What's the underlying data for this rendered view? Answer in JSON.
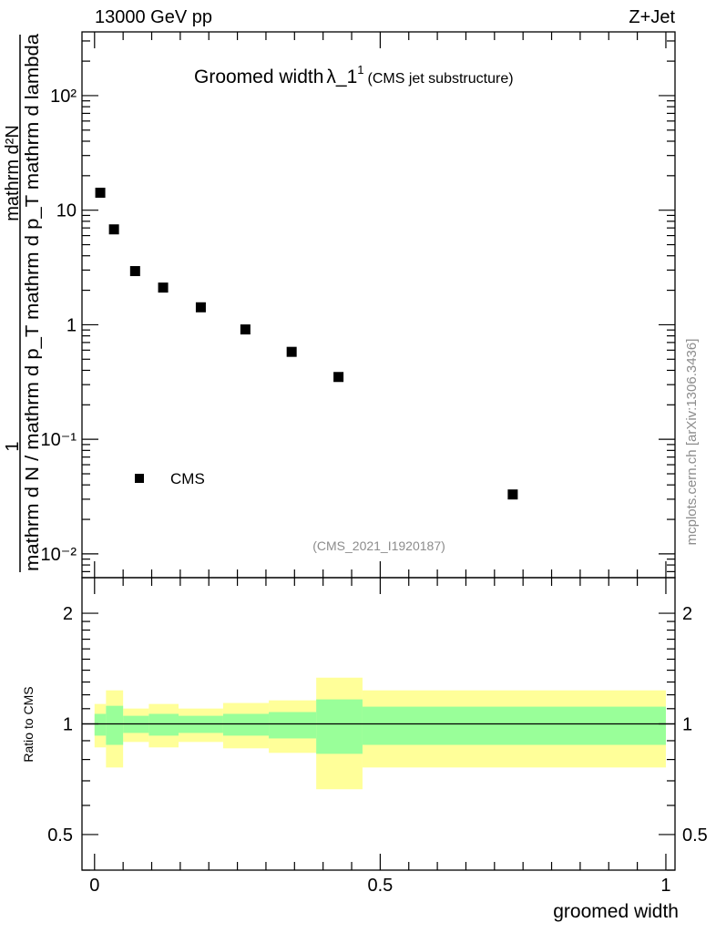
{
  "chart_data": [
    {
      "type": "scatter",
      "header_left": "13000 GeV pp",
      "header_right": "Z+Jet",
      "title": "Groomed width",
      "title_symbol": "λ_1",
      "title_sup": "1",
      "title_suffix": "(CMS jet substructure)",
      "ylabel_num_left": "1",
      "ylabel_num_right": "mathrm d²N",
      "ylabel_den": "mathrm d N / mathrm d p_T mathrm d p_T mathrm d lambda",
      "yscale": "log",
      "ylim": [
        0.0062,
        360
      ],
      "xlim": [
        -0.022,
        1.016
      ],
      "ytick_values": [
        0.01,
        0.1,
        1,
        10,
        100
      ],
      "ytick_labels": [
        "10⁻²",
        "10⁻¹",
        "1",
        "10",
        "10²"
      ],
      "legend": {
        "entries": [
          "CMS"
        ],
        "placement": "bottom-left"
      },
      "analysis_label": "(CMS_2021_I1920187)",
      "side_label": "mcplots.cern.ch [arXiv:1306.3436]",
      "series": [
        {
          "name": "CMS",
          "color": "#000000",
          "x": [
            0.01,
            0.034,
            0.071,
            0.12,
            0.186,
            0.264,
            0.345,
            0.427,
            0.732
          ],
          "y": [
            14.2,
            6.8,
            2.94,
            2.11,
            1.42,
            0.91,
            0.58,
            0.35,
            0.033
          ]
        }
      ]
    },
    {
      "type": "area",
      "ylabel": "Ratio to CMS",
      "xlabel": "groomed width",
      "yscale": "log",
      "ylim": [
        0.4,
        2.5
      ],
      "xlim": [
        -0.022,
        1.016
      ],
      "ytick_values": [
        0.5,
        1,
        2
      ],
      "ytick_labels": [
        "0.5",
        "1",
        "2"
      ],
      "xtick_values": [
        0,
        0.5,
        1
      ],
      "xtick_labels": [
        "0",
        "0.5",
        "1"
      ],
      "reference_line": 1,
      "band_colors": {
        "outer": "#ffff99",
        "inner": "#99ff99"
      },
      "bin_edges": [
        0,
        0.02,
        0.05,
        0.095,
        0.147,
        0.225,
        0.305,
        0.388,
        0.469,
        1.0
      ],
      "outer_band": {
        "upper": [
          1.133,
          1.234,
          1.101,
          1.133,
          1.101,
          1.14,
          1.159,
          1.336,
          1.234
        ],
        "lower": [
          0.863,
          0.761,
          0.893,
          0.863,
          0.893,
          0.858,
          0.834,
          0.664,
          0.761
        ]
      },
      "inner_band": {
        "upper": [
          1.065,
          1.12,
          1.052,
          1.065,
          1.052,
          1.065,
          1.077,
          1.166,
          1.114
        ],
        "lower": [
          0.929,
          0.877,
          0.945,
          0.929,
          0.945,
          0.929,
          0.913,
          0.829,
          0.877
        ]
      }
    }
  ]
}
